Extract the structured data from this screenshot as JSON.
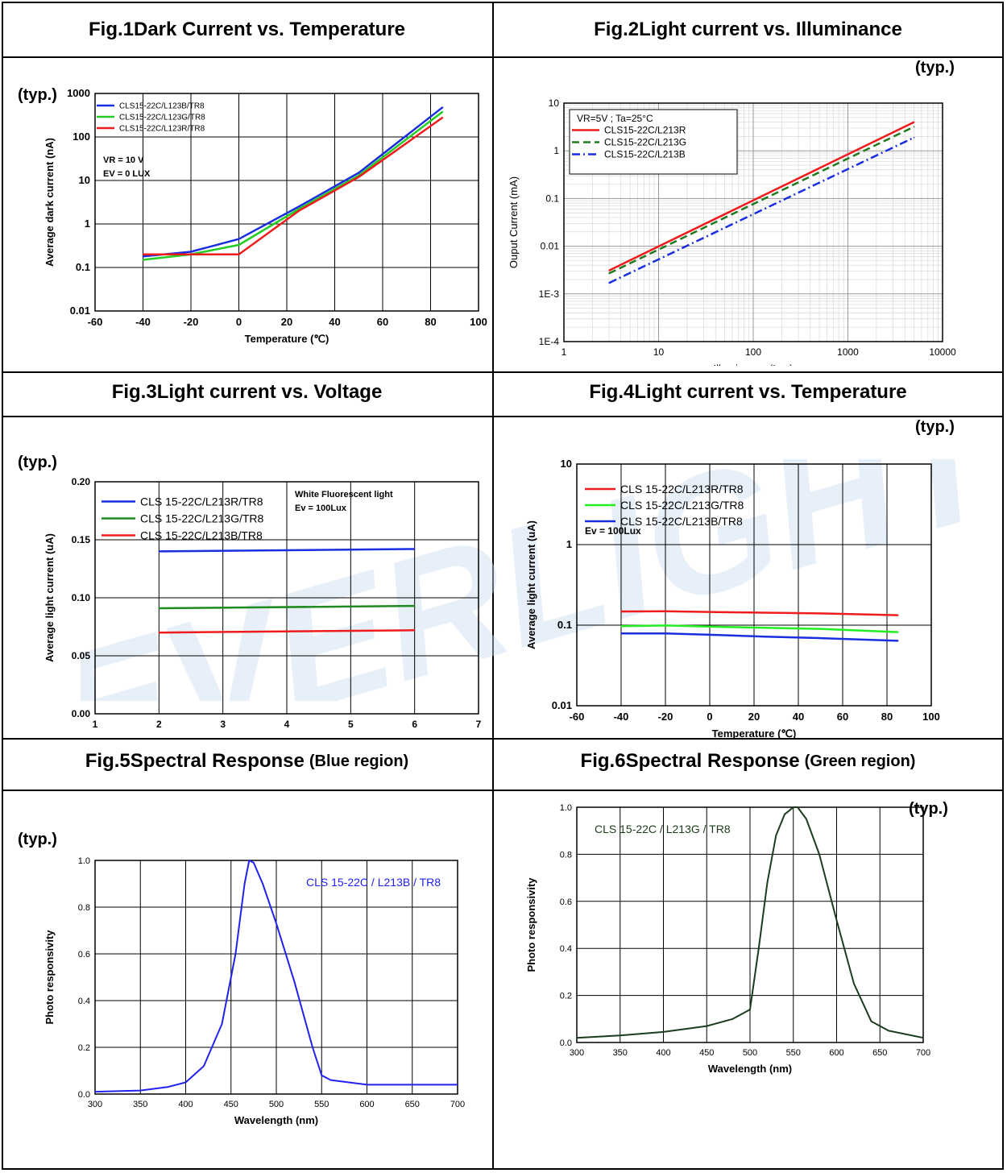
{
  "figures": [
    {
      "num": "Fig.1",
      "title": "Dark Current vs. Temperature",
      "sub": ""
    },
    {
      "num": "Fig.2",
      "title": "Light current vs. Illuminance",
      "sub": ""
    },
    {
      "num": "Fig.3",
      "title": "Light current vs. Voltage",
      "sub": ""
    },
    {
      "num": "Fig.4",
      "title": "Light current vs. Temperature",
      "sub": ""
    },
    {
      "num": "Fig.5",
      "title": "Spectral Response",
      "sub": "(Blue region)"
    },
    {
      "num": "Fig.6",
      "title": "Spectral Response",
      "sub": "(Green region)"
    }
  ],
  "typ_label": "(typ.)",
  "watermark_text": "EVERLIGHT",
  "colors": {
    "red": "#ee1c1c",
    "green": "#22cc22",
    "blue": "#1a2ee0",
    "dark_green": "#1f7a1f",
    "spectral_blue": "#2222ee",
    "spectral_green": "#1b3d1b",
    "watermark": "#c9dcef"
  },
  "chart_data": [
    {
      "id": "fig1",
      "type": "line",
      "log_y": true,
      "xlabel": "Temperature (℃)",
      "ylabel": "Average dark current (nA)",
      "xlim": [
        -60,
        100
      ],
      "ylim": [
        0.01,
        1000
      ],
      "x_ticks": [
        "-60",
        "-40",
        "-20",
        "0",
        "20",
        "40",
        "60",
        "80",
        "100"
      ],
      "y_ticks": [
        "0.01",
        "0.1",
        "1",
        "10",
        "100",
        "1000"
      ],
      "annotations": [
        "VR = 10 V",
        "EV = 0 LUX"
      ],
      "legend_position": "top-left",
      "grid": true,
      "series": [
        {
          "name": "CLS15-22C/L123B/TR8",
          "color": "#1a2ee0",
          "x": [
            -40,
            -20,
            0,
            25,
            50,
            85
          ],
          "y": [
            0.18,
            0.23,
            0.45,
            2.5,
            15,
            480
          ]
        },
        {
          "name": "CLS15-22C/L123G/TR8",
          "color": "#22cc22",
          "x": [
            -40,
            -20,
            0,
            25,
            50,
            85
          ],
          "y": [
            0.15,
            0.2,
            0.33,
            2.2,
            13,
            380
          ]
        },
        {
          "name": "CLS15-22C/L123R/TR8",
          "color": "#ee1c1c",
          "x": [
            -40,
            -20,
            0,
            25,
            50,
            85
          ],
          "y": [
            0.2,
            0.2,
            0.2,
            2.0,
            12,
            280
          ]
        }
      ]
    },
    {
      "id": "fig2",
      "type": "line",
      "log_x": true,
      "log_y": true,
      "xlabel": "Illuminance (Lux)",
      "ylabel": "Ouput Current (mA)",
      "xlim": [
        1,
        10000
      ],
      "ylim": [
        0.0001,
        10
      ],
      "x_ticks": [
        "1",
        "10",
        "100",
        "1000",
        "10000"
      ],
      "y_ticks": [
        "1E-4",
        "1E-3",
        "0.01",
        "0.1",
        "1",
        "10"
      ],
      "annotations": [
        "VR=5V ; Ta=25°C"
      ],
      "legend_position": "top-left",
      "grid": true,
      "series": [
        {
          "name": "CLS15-22C/L213R",
          "color": "#ee1c1c",
          "dash": "",
          "x": [
            3,
            5000
          ],
          "y": [
            0.0031,
            4.0
          ]
        },
        {
          "name": "CLS15-22C/L213G",
          "color": "#1f7a1f",
          "dash": "9,5",
          "x": [
            3,
            5000
          ],
          "y": [
            0.0027,
            3.2
          ]
        },
        {
          "name": "CLS15-22C/L213B",
          "color": "#1a2ee0",
          "dash": "10,4,2,4",
          "x": [
            3,
            5000
          ],
          "y": [
            0.0017,
            1.9
          ]
        }
      ]
    },
    {
      "id": "fig3",
      "type": "line",
      "xlabel": "Voltage (V)",
      "ylabel": "Average light current (uA)",
      "xlim": [
        1,
        7
      ],
      "ylim": [
        0,
        0.2
      ],
      "x_ticks": [
        "1",
        "2",
        "3",
        "4",
        "5",
        "6",
        "7"
      ],
      "y_ticks": [
        "0.00",
        "0.05",
        "0.10",
        "0.15",
        "0.20"
      ],
      "annotations": [
        "White Fluorescent light",
        "Ev = 100Lux"
      ],
      "legend_position": "top-left",
      "grid": true,
      "series": [
        {
          "name": "CLS 15-22C/L213R/TR8",
          "color": "#1a2ee0",
          "x": [
            2,
            6
          ],
          "y": [
            0.14,
            0.142
          ]
        },
        {
          "name": "CLS 15-22C/L213G/TR8",
          "color": "#1f8a1f",
          "x": [
            2,
            6
          ],
          "y": [
            0.091,
            0.093
          ]
        },
        {
          "name": "CLS 15-22C/L213B/TR8",
          "color": "#ee1c1c",
          "x": [
            2,
            6
          ],
          "y": [
            0.07,
            0.072
          ]
        }
      ]
    },
    {
      "id": "fig4",
      "type": "line",
      "log_y": true,
      "xlabel": "Temperature (℃)",
      "ylabel": "Average light current (uA)",
      "xlim": [
        -60,
        100
      ],
      "ylim": [
        0.01,
        10
      ],
      "x_ticks": [
        "-60",
        "-40",
        "-20",
        "0",
        "20",
        "40",
        "60",
        "80",
        "100"
      ],
      "y_ticks": [
        "0.01",
        "0.1",
        "1",
        "10"
      ],
      "annotations": [
        "Ev = 100Lux"
      ],
      "legend_position": "top-left",
      "grid": true,
      "series": [
        {
          "name": "CLS 15-22C/L213R/TR8",
          "color": "#ee1c1c",
          "x": [
            -40,
            -20,
            0,
            25,
            50,
            85
          ],
          "y": [
            0.148,
            0.149,
            0.146,
            0.143,
            0.14,
            0.133
          ]
        },
        {
          "name": "CLS 15-22C/L213G/TR8",
          "color": "#22ee22",
          "x": [
            -40,
            -20,
            0,
            25,
            50,
            85
          ],
          "y": [
            0.097,
            0.099,
            0.096,
            0.093,
            0.09,
            0.082
          ]
        },
        {
          "name": "CLS 15-22C/L213B/TR8",
          "color": "#1a2ee0",
          "x": [
            -40,
            -20,
            0,
            25,
            50,
            85
          ],
          "y": [
            0.079,
            0.079,
            0.076,
            0.072,
            0.069,
            0.064
          ]
        }
      ]
    },
    {
      "id": "fig5",
      "type": "line",
      "xlabel": "Wavelength (nm)",
      "ylabel": "Photo responsivity",
      "xlim": [
        300,
        700
      ],
      "ylim": [
        0,
        1.0
      ],
      "x_ticks": [
        "300",
        "350",
        "400",
        "450",
        "500",
        "550",
        "600",
        "650",
        "700"
      ],
      "y_ticks": [
        "0.0",
        "0.2",
        "0.4",
        "0.6",
        "0.8",
        "1.0"
      ],
      "annotations": [
        "CLS 15-22C / L213B / TR8"
      ],
      "grid": true,
      "series": [
        {
          "name": "",
          "color": "#2222ee",
          "x": [
            300,
            350,
            380,
            400,
            420,
            440,
            455,
            465,
            470,
            475,
            485,
            500,
            520,
            540,
            550,
            560,
            600,
            700
          ],
          "y": [
            0.01,
            0.015,
            0.03,
            0.05,
            0.12,
            0.3,
            0.6,
            0.9,
            1.0,
            0.99,
            0.9,
            0.73,
            0.48,
            0.2,
            0.08,
            0.06,
            0.04,
            0.04
          ]
        }
      ]
    },
    {
      "id": "fig6",
      "type": "line",
      "xlabel": "Wavelength (nm)",
      "ylabel": "Photo responsivity",
      "xlim": [
        300,
        700
      ],
      "ylim": [
        0,
        1.0
      ],
      "x_ticks": [
        "300",
        "350",
        "400",
        "450",
        "500",
        "550",
        "600",
        "650",
        "700"
      ],
      "y_ticks": [
        "0.0",
        "0.2",
        "0.4",
        "0.6",
        "0.8",
        "1.0"
      ],
      "annotations": [
        "CLS 15-22C / L213G / TR8"
      ],
      "grid": true,
      "series": [
        {
          "name": "",
          "color": "#1b3d1b",
          "x": [
            300,
            350,
            400,
            450,
            480,
            500,
            510,
            520,
            530,
            540,
            550,
            555,
            565,
            580,
            600,
            620,
            640,
            660,
            700
          ],
          "y": [
            0.02,
            0.03,
            0.045,
            0.07,
            0.1,
            0.14,
            0.4,
            0.68,
            0.88,
            0.97,
            1.0,
            1.0,
            0.95,
            0.8,
            0.52,
            0.25,
            0.09,
            0.05,
            0.02
          ]
        }
      ]
    }
  ]
}
